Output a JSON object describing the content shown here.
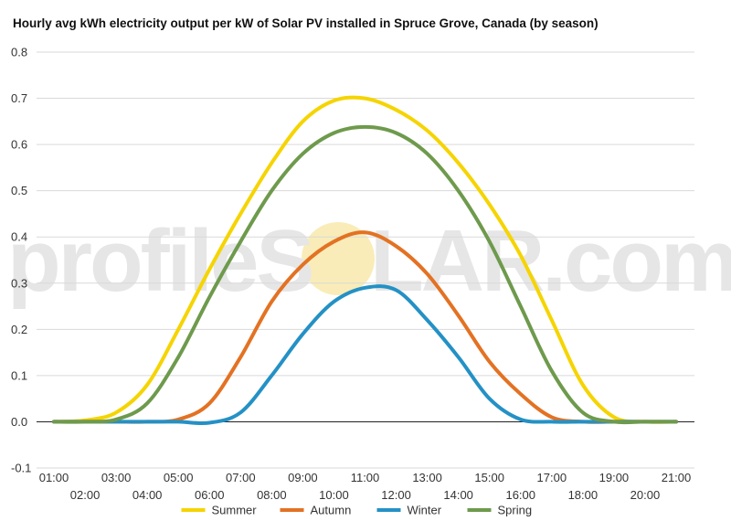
{
  "title": "Hourly avg kWh electricity output per kW of Solar PV installed in Spruce Grove, Canada (by season)",
  "watermark": {
    "left_text": "profileS",
    "right_text": "LAR.com",
    "sun_color": "#f7e7a6"
  },
  "chart_data": {
    "type": "line",
    "title": "Hourly avg kWh electricity output per kW of Solar PV installed in Spruce Grove, Canada (by season)",
    "xlabel": "",
    "ylabel": "",
    "ylim": [
      -0.1,
      0.8
    ],
    "yticks": [
      "-0.1",
      "0.0",
      "0.1",
      "0.2",
      "0.3",
      "0.4",
      "0.5",
      "0.6",
      "0.7",
      "0.8"
    ],
    "x": [
      "01:00",
      "02:00",
      "03:00",
      "04:00",
      "05:00",
      "06:00",
      "07:00",
      "08:00",
      "09:00",
      "10:00",
      "11:00",
      "12:00",
      "13:00",
      "14:00",
      "15:00",
      "16:00",
      "17:00",
      "18:00",
      "19:00",
      "20:00",
      "21:00"
    ],
    "grid": true,
    "legend_position": "bottom",
    "series": [
      {
        "name": "Summer",
        "color": "#f5d400",
        "values": [
          0.0,
          0.003,
          0.02,
          0.08,
          0.2,
          0.33,
          0.45,
          0.56,
          0.65,
          0.695,
          0.7,
          0.675,
          0.63,
          0.56,
          0.47,
          0.36,
          0.22,
          0.08,
          0.01,
          0.0,
          0.0
        ]
      },
      {
        "name": "Autumn",
        "color": "#e37223",
        "values": [
          0.0,
          0.0,
          0.0,
          0.0,
          0.005,
          0.04,
          0.14,
          0.26,
          0.34,
          0.39,
          0.41,
          0.38,
          0.32,
          0.23,
          0.13,
          0.06,
          0.01,
          0.0,
          0.0,
          0.0,
          0.0
        ]
      },
      {
        "name": "Winter",
        "color": "#2491c5",
        "values": [
          0.0,
          0.0,
          0.0,
          0.0,
          0.0,
          -0.002,
          0.02,
          0.1,
          0.19,
          0.26,
          0.29,
          0.285,
          0.22,
          0.14,
          0.05,
          0.005,
          0.0,
          0.0,
          0.0,
          0.0,
          0.0
        ]
      },
      {
        "name": "Spring",
        "color": "#6e9a4c",
        "values": [
          0.0,
          0.0,
          0.005,
          0.04,
          0.14,
          0.27,
          0.39,
          0.5,
          0.58,
          0.625,
          0.638,
          0.625,
          0.58,
          0.5,
          0.39,
          0.25,
          0.11,
          0.02,
          0.0,
          0.0,
          0.0
        ]
      }
    ]
  }
}
